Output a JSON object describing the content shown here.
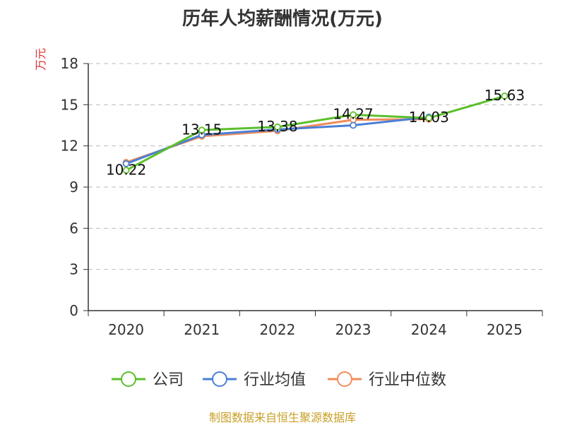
{
  "chart_data": {
    "type": "line",
    "title": "历年人均薪酬情况(万元)",
    "ylabel": "万元",
    "xlabel": "",
    "categories": [
      "2020",
      "2021",
      "2022",
      "2023",
      "2024",
      "2025"
    ],
    "ylim": [
      0,
      18
    ],
    "yticks": [
      0,
      3,
      6,
      9,
      12,
      15,
      18
    ],
    "grid": true,
    "legend_position": "bottom",
    "series": [
      {
        "name": "公司",
        "color": "#5cbf2a",
        "values": [
          10.22,
          13.15,
          13.38,
          14.27,
          14.03,
          15.63
        ],
        "labels": [
          "10.22",
          "13.15",
          "13.38",
          "14.27",
          "14.03",
          "15.63"
        ]
      },
      {
        "name": "行业均值",
        "color": "#4a7fd6",
        "values": [
          10.7,
          12.8,
          13.2,
          13.5,
          14.1,
          null
        ]
      },
      {
        "name": "行业中位数",
        "color": "#f08c5a",
        "values": [
          10.8,
          12.7,
          13.1,
          13.9,
          13.95,
          null
        ]
      }
    ]
  },
  "source": "制图数据来自恒生聚源数据库"
}
